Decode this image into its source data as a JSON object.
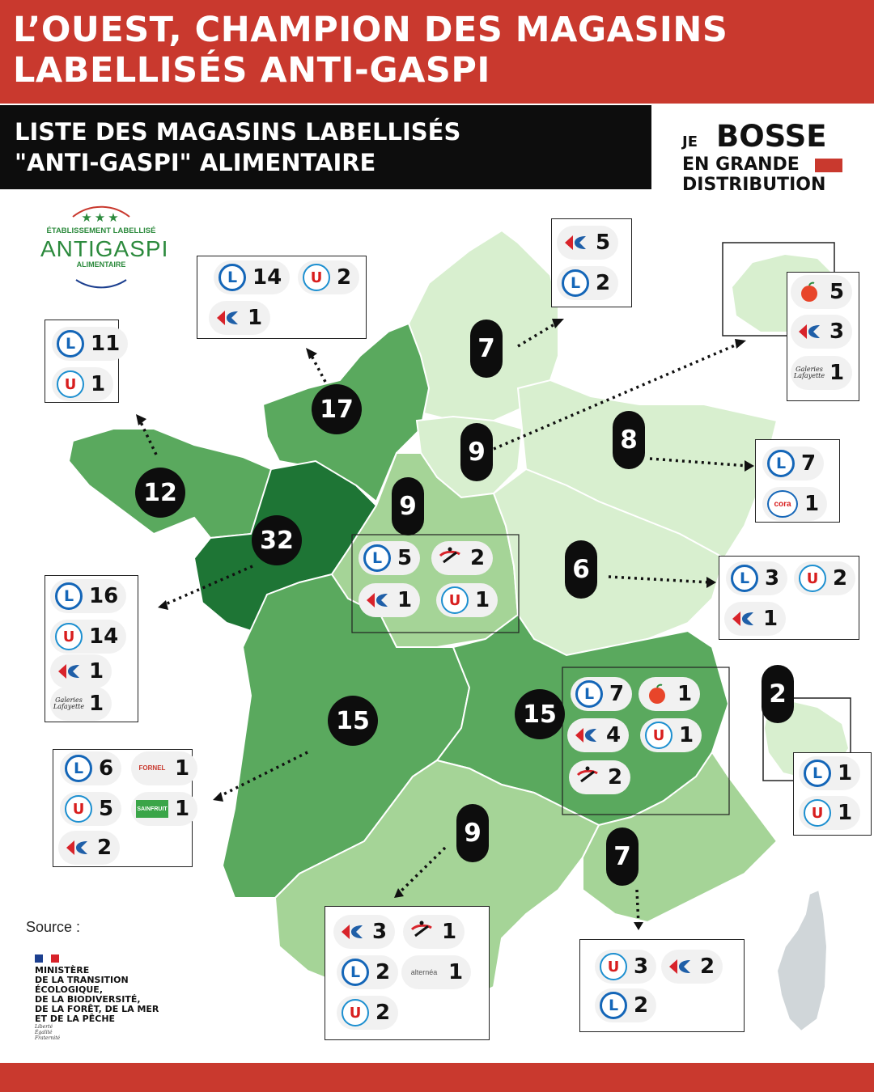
{
  "header": {
    "title_line1": "L’OUEST, CHAMPION DES MAGASINS",
    "title_line2": "LABELLISÉS ANTI-GASPI"
  },
  "subheader": {
    "line1": "LISTE DES MAGASINS LABELLISÉS",
    "line2": "\"ANTI-GASPI\" ALIMENTAIRE"
  },
  "brand": {
    "je": "JE",
    "bosse": "BOSSE",
    "en_grande": "EN GRANDE",
    "distribution": "DISTRIBUTION"
  },
  "label_badge": {
    "stars": "★★★",
    "line1": "ÉTABLISSEMENT LABELLISÉ",
    "line2": "ANTIGASPI",
    "line3": "ALIMENTAIRE"
  },
  "source": {
    "label": "Source :",
    "ministry": [
      "MINISTÈRE",
      "DE LA TRANSITION",
      "ÉCOLOGIQUE,",
      "DE LA BIODIVERSITÉ,",
      "DE LA FORÊT, DE LA MER",
      "ET DE LA PÊCHE"
    ],
    "devise": [
      "Liberté",
      "Égalité",
      "Fraternité"
    ]
  },
  "regions": [
    {
      "region": "Bretagne",
      "total": "12"
    },
    {
      "region": "Normandie",
      "total": "17"
    },
    {
      "region": "Hauts-de-France",
      "total": "7"
    },
    {
      "region": "Île-de-France",
      "total": "9"
    },
    {
      "region": "Grand Est",
      "total": "8"
    },
    {
      "region": "Pays de la Loire",
      "total": "32"
    },
    {
      "region": "Centre-Val de Loire",
      "total": "9"
    },
    {
      "region": "Bourgogne-Franche-Comté",
      "total": "6"
    },
    {
      "region": "Nouvelle-Aquitaine",
      "total": "15"
    },
    {
      "region": "Auvergne-Rhône-Alpes",
      "total": "15"
    },
    {
      "region": "Occitanie",
      "total": "9"
    },
    {
      "region": "Provence-Alpes-Côte d'Azur",
      "total": "7"
    },
    {
      "region": "La Réunion",
      "total": "2"
    }
  ],
  "brand_labels": {
    "leclerc": "L",
    "systeme_u": "U",
    "cora": "cora",
    "galeries": "Galeries Lafayette",
    "fornel": "FORNEL",
    "sainfruit": "SAINFRUIT",
    "mousquetaires": "Les Mousquetaires",
    "alternea": "alternéa"
  },
  "store_counts": {
    "normandie": {
      "leclerc": "14",
      "systeme_u": "2",
      "carrefour": "1"
    },
    "bretagne": {
      "leclerc": "11",
      "systeme_u": "1"
    },
    "hauts_de_france": {
      "carrefour": "5",
      "leclerc": "2"
    },
    "ile_de_france": {
      "auchan": "5",
      "carrefour": "3",
      "galeries": "1"
    },
    "grand_est": {
      "leclerc": "7",
      "cora": "1"
    },
    "centre_val_de_loire": {
      "leclerc": "5",
      "mousquetaires": "2",
      "carrefour": "1",
      "systeme_u": "1"
    },
    "bourgogne_franche_comte": {
      "leclerc": "3",
      "systeme_u": "2",
      "carrefour": "1"
    },
    "pays_de_la_loire": {
      "leclerc": "16",
      "systeme_u": "14",
      "carrefour": "1",
      "galeries": "1"
    },
    "auvergne_rhone_alpes": {
      "leclerc": "7",
      "auchan": "1",
      "carrefour": "4",
      "systeme_u": "1",
      "mousquetaires": "2"
    },
    "reunion": {
      "leclerc": "1",
      "systeme_u": "1"
    },
    "nouvelle_aquitaine": {
      "leclerc": "6",
      "fornel": "1",
      "systeme_u": "5",
      "sainfruit": "1",
      "carrefour": "2"
    },
    "occitanie": {
      "carrefour": "3",
      "mousquetaires": "1",
      "leclerc": "2",
      "alternea": "1",
      "systeme_u": "2"
    },
    "paca": {
      "systeme_u": "3",
      "carrefour": "2",
      "leclerc": "2"
    }
  },
  "colors": {
    "header_red": "#c9392e",
    "dark_green": "#1e7535",
    "medium_green": "#5aa95e",
    "light_green": "#a5d497",
    "pale_green": "#d8efcf",
    "leclerc_blue": "#1466b8",
    "systeme_u_red": "#d81e1e",
    "carrefour_blue": "#1f5fa8",
    "carrefour_red": "#d8232a"
  }
}
